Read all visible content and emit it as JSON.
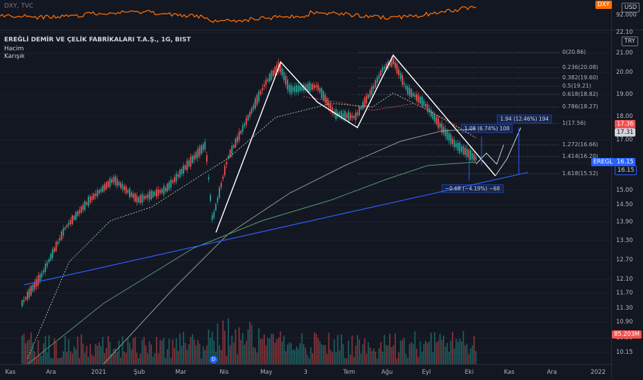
{
  "dxy": {
    "title": "DXY, TVC",
    "axis_labels": [
      "92.000"
    ],
    "tag_currency": "USD",
    "tag_value": "DXY"
  },
  "main": {
    "title": "EREĞLİ DEMİR VE ÇELİK FABRİKALARI T.A.Ş., 1G, BIST",
    "legend_items": [
      "Hacim",
      "Karışık"
    ],
    "currency_tag": "TRY",
    "price_labels": [
      "22.10",
      "21.00",
      "20.00",
      "19.00",
      "18.00",
      "17.00",
      "16.00",
      "15.00",
      "14.50",
      "13.90",
      "13.30",
      "12.70",
      "12.10",
      "11.70",
      "11.30",
      "10.90",
      "10.50",
      "10.15"
    ],
    "fib_levels": [
      "0(20.86)",
      "0.236(20.08)",
      "0.382(19.60)",
      "0.5(19.21)",
      "0.618(18.82)",
      "0.786(18.27)",
      "1(17.56)",
      "1.272(16.66)",
      "1.414(16.20)",
      "1.618(15.52)"
    ],
    "measures": [
      "1.94 (12.46%) 194",
      "1.08 (6.74%) 108",
      "−0.68 (−4.19%) −68"
    ],
    "tags": {
      "p1": "17.36",
      "p2": "17.31",
      "symbol": "EREGL",
      "p3": "16.15",
      "p4": "16.15",
      "volume": "85.203M"
    },
    "dividend_marker": "D"
  },
  "time_axis": [
    "Kas",
    "Ara",
    "2021",
    "Şub",
    "Mar",
    "Nis",
    "May",
    "3",
    "Tem",
    "Ağu",
    "Eyl",
    "Eki",
    "Kas",
    "Ara",
    "2022"
  ],
  "colors": {
    "up": "#26a69a",
    "down": "#ef5350",
    "dxy": "#ff6d00",
    "trend": "#2962ff",
    "vol_up": "#26a69a80",
    "vol_down": "#ef535080"
  }
}
